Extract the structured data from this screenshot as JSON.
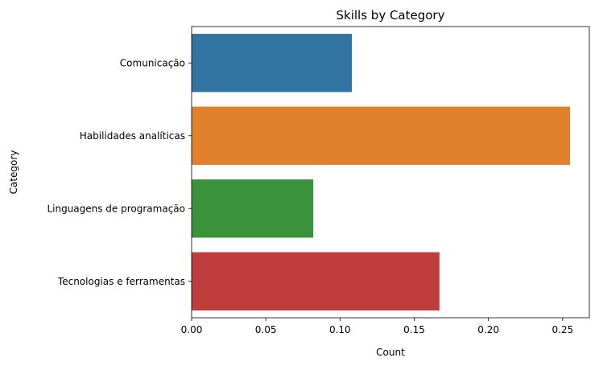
{
  "chart_data": {
    "type": "bar",
    "orientation": "horizontal",
    "title": "Skills by Category",
    "xlabel": "Count",
    "ylabel": "Category",
    "categories": [
      "Comunicação",
      "Habilidades analíticas",
      "Linguagens de programação",
      "Tecnologias e ferramentas"
    ],
    "values": [
      0.108,
      0.255,
      0.082,
      0.167
    ],
    "colors": [
      "#3274a1",
      "#e1812c",
      "#3a923a",
      "#c03d3e"
    ],
    "xlim": [
      0,
      0.268
    ],
    "xticks": [
      0.0,
      0.05,
      0.1,
      0.15,
      0.2,
      0.25
    ],
    "xtick_labels": [
      "0.00",
      "0.05",
      "0.10",
      "0.15",
      "0.20",
      "0.25"
    ],
    "grid": false,
    "legend": "none"
  }
}
